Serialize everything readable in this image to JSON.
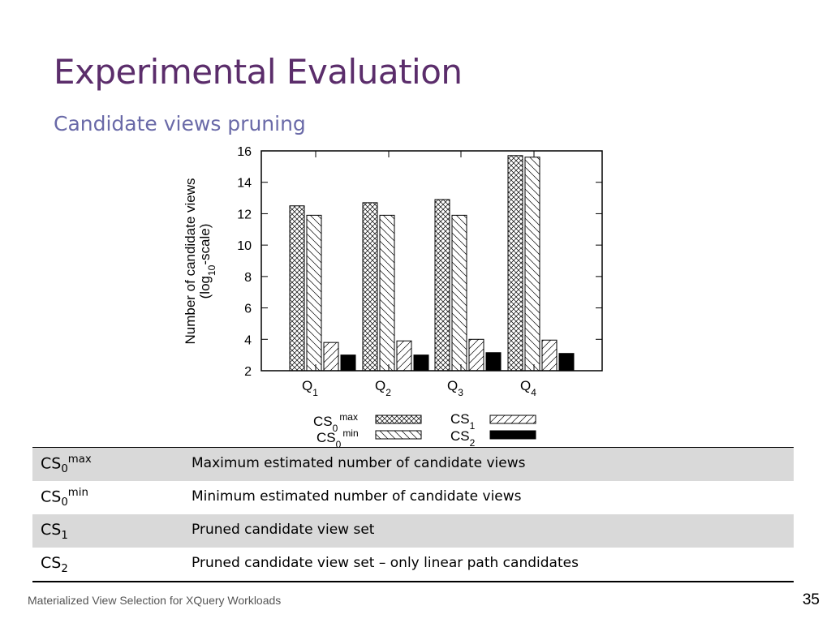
{
  "slide": {
    "title": "Experimental Evaluation",
    "subtitle": "Candidate views pruning",
    "footer": "Materialized View Selection for XQuery Workloads",
    "page_number": "35"
  },
  "chart_data": {
    "type": "bar",
    "ylabel_line1": "Number of candidate views",
    "ylabel_line2_parts": [
      "(log",
      "10",
      "-scale)"
    ],
    "ylim": [
      2,
      16
    ],
    "yticks": [
      "2",
      "4",
      "6",
      "8",
      "10",
      "12",
      "14",
      "16"
    ],
    "categories": [
      {
        "base": "Q",
        "sub": "1"
      },
      {
        "base": "Q",
        "sub": "2"
      },
      {
        "base": "Q",
        "sub": "3"
      },
      {
        "base": "Q",
        "sub": "4"
      }
    ],
    "series": [
      {
        "name": "CS0max",
        "label_base": "CS",
        "label_sub": "0",
        "label_sup": "max",
        "pattern": "crosshatch",
        "values": [
          12.5,
          12.7,
          12.9,
          15.7
        ]
      },
      {
        "name": "CS0min",
        "label_base": "CS",
        "label_sub": "0",
        "label_sup": "min",
        "pattern": "back-diagonal",
        "values": [
          11.9,
          11.9,
          11.9,
          15.6
        ]
      },
      {
        "name": "CS1",
        "label_base": "CS",
        "label_sub": "1",
        "label_sup": "",
        "pattern": "diagonal",
        "values": [
          3.8,
          3.9,
          4.0,
          3.95
        ]
      },
      {
        "name": "CS2",
        "label_base": "CS",
        "label_sub": "2",
        "label_sup": "",
        "pattern": "solid",
        "values": [
          3.0,
          3.0,
          3.15,
          3.1
        ]
      }
    ]
  },
  "definitions": [
    {
      "sym_base": "CS",
      "sym_sub": "0",
      "sym_sup": "max",
      "desc": "Maximum estimated number of candidate views",
      "shaded": true
    },
    {
      "sym_base": "CS",
      "sym_sub": "0",
      "sym_sup": "min",
      "desc": "Minimum estimated number of candidate views",
      "shaded": false
    },
    {
      "sym_base": "CS",
      "sym_sub": "1",
      "sym_sup": "",
      "desc": "Pruned candidate view set",
      "shaded": true
    },
    {
      "sym_base": "CS",
      "sym_sub": "2",
      "sym_sup": "",
      "desc": "Pruned candidate view set – only linear path candidates",
      "shaded": false
    }
  ]
}
